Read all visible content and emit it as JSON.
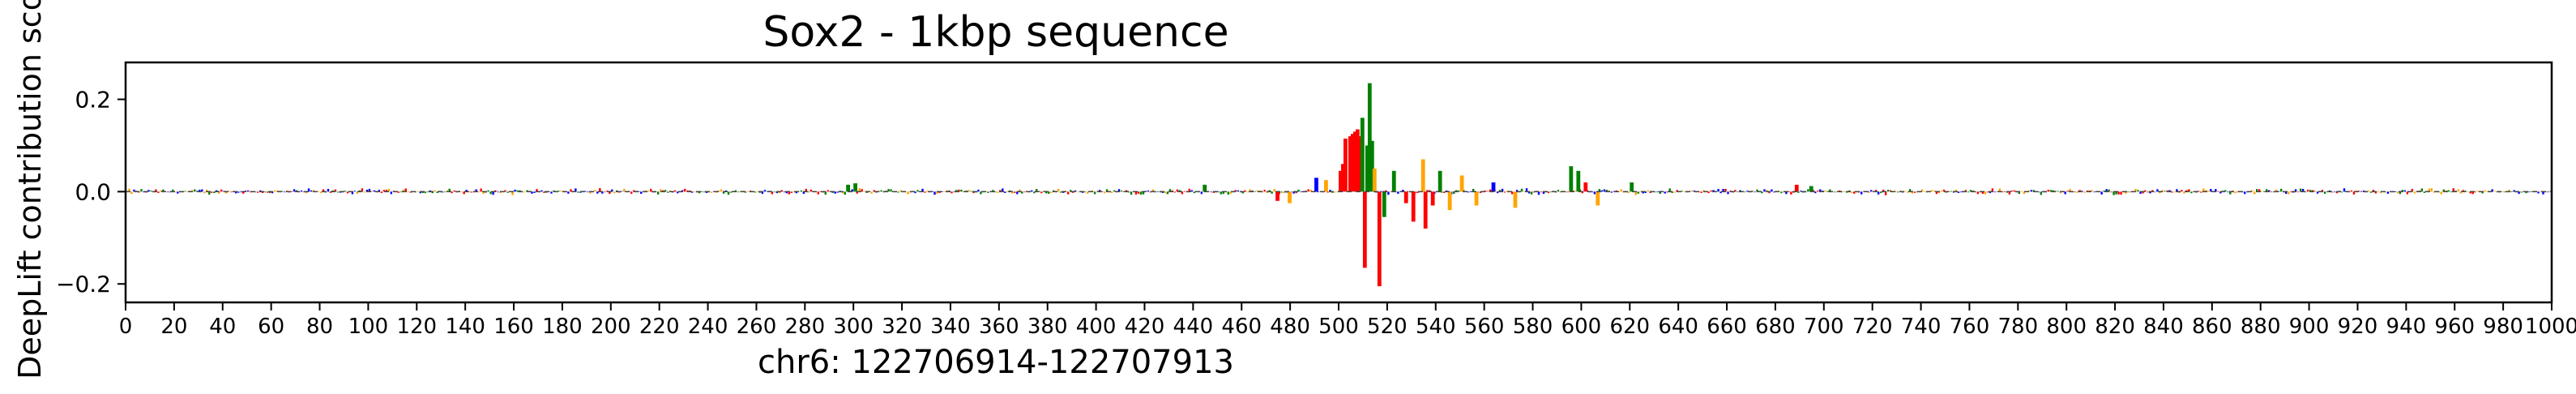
{
  "chart_data": {
    "type": "sequence-logo",
    "title": "Sox2 - 1kbp sequence",
    "xlabel": "chr6: 122706914-122707913",
    "ylabel": "DeepLift contribution scores",
    "xlim": [
      0,
      1000
    ],
    "ylim": [
      -0.24,
      0.28
    ],
    "xticks": [
      0,
      20,
      40,
      60,
      80,
      100,
      120,
      140,
      160,
      180,
      200,
      220,
      240,
      260,
      280,
      300,
      320,
      340,
      360,
      380,
      400,
      420,
      440,
      460,
      480,
      500,
      520,
      540,
      560,
      580,
      600,
      620,
      640,
      660,
      680,
      700,
      720,
      740,
      760,
      780,
      800,
      820,
      840,
      860,
      880,
      900,
      920,
      940,
      960,
      980,
      1000
    ],
    "xtick_labels": [
      "0",
      "20",
      "40",
      "60",
      "80",
      "100",
      "120",
      "140",
      "160",
      "180",
      "200",
      "220",
      "240",
      "260",
      "280",
      "300",
      "320",
      "340",
      "360",
      "380",
      "400",
      "420",
      "440",
      "460",
      "480",
      "500",
      "520",
      "540",
      "560",
      "580",
      "600",
      "620",
      "640",
      "660",
      "680",
      "700",
      "720",
      "740",
      "760",
      "780",
      "800",
      "820",
      "840",
      "860",
      "880",
      "900",
      "920",
      "940",
      "960",
      "980",
      "1000"
    ],
    "yticks": [
      -0.2,
      0.0,
      0.2
    ],
    "ytick_labels": [
      "−0.2",
      "0.0",
      "0.2"
    ],
    "grid": false,
    "legend": "none",
    "base_colors": {
      "A": "#008000",
      "C": "#0000ff",
      "G": "#ffa500",
      "T": "#ff0000"
    },
    "highlighted_positions": [
      {
        "x": 297,
        "base": "A",
        "value": 0.015
      },
      {
        "x": 300,
        "base": "A",
        "value": 0.018
      },
      {
        "x": 444,
        "base": "A",
        "value": 0.015
      },
      {
        "x": 474,
        "base": "T",
        "value": -0.02
      },
      {
        "x": 479,
        "base": "G",
        "value": -0.025
      },
      {
        "x": 490,
        "base": "C",
        "value": 0.03
      },
      {
        "x": 494,
        "base": "G",
        "value": 0.025
      },
      {
        "x": 500,
        "base": "T",
        "value": 0.045
      },
      {
        "x": 501,
        "base": "T",
        "value": 0.06
      },
      {
        "x": 502,
        "base": "T",
        "value": 0.115
      },
      {
        "x": 504,
        "base": "T",
        "value": 0.12
      },
      {
        "x": 505,
        "base": "T",
        "value": 0.125
      },
      {
        "x": 506,
        "base": "T",
        "value": 0.13
      },
      {
        "x": 507,
        "base": "T",
        "value": 0.135
      },
      {
        "x": 508,
        "base": "T",
        "value": 0.12
      },
      {
        "x": 509,
        "base": "A",
        "value": 0.16
      },
      {
        "x": 510,
        "base": "T",
        "value": -0.165
      },
      {
        "x": 511,
        "base": "A",
        "value": 0.1
      },
      {
        "x": 512,
        "base": "A",
        "value": 0.235
      },
      {
        "x": 513,
        "base": "A",
        "value": 0.11
      },
      {
        "x": 514,
        "base": "G",
        "value": 0.05
      },
      {
        "x": 516,
        "base": "T",
        "value": -0.205
      },
      {
        "x": 518,
        "base": "A",
        "value": -0.055
      },
      {
        "x": 522,
        "base": "A",
        "value": 0.045
      },
      {
        "x": 527,
        "base": "T",
        "value": -0.025
      },
      {
        "x": 530,
        "base": "T",
        "value": -0.065
      },
      {
        "x": 534,
        "base": "G",
        "value": 0.07
      },
      {
        "x": 535,
        "base": "T",
        "value": -0.08
      },
      {
        "x": 538,
        "base": "T",
        "value": -0.03
      },
      {
        "x": 541,
        "base": "A",
        "value": 0.045
      },
      {
        "x": 545,
        "base": "G",
        "value": -0.04
      },
      {
        "x": 550,
        "base": "G",
        "value": 0.035
      },
      {
        "x": 556,
        "base": "G",
        "value": -0.03
      },
      {
        "x": 563,
        "base": "C",
        "value": 0.02
      },
      {
        "x": 572,
        "base": "G",
        "value": -0.035
      },
      {
        "x": 595,
        "base": "A",
        "value": 0.055
      },
      {
        "x": 598,
        "base": "A",
        "value": 0.045
      },
      {
        "x": 601,
        "base": "T",
        "value": 0.02
      },
      {
        "x": 606,
        "base": "G",
        "value": -0.03
      },
      {
        "x": 620,
        "base": "A",
        "value": 0.02
      },
      {
        "x": 688,
        "base": "T",
        "value": 0.015
      },
      {
        "x": 694,
        "base": "A",
        "value": 0.012
      }
    ],
    "background_noise_amplitude": 0.006
  }
}
